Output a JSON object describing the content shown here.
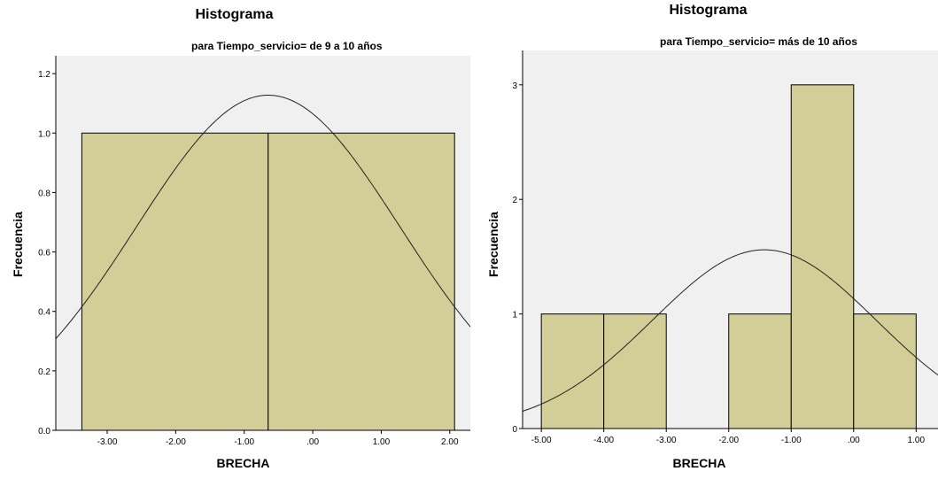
{
  "chart_data": [
    {
      "type": "bar",
      "title": "Histograma",
      "subtitle": "para Tiempo_servicio= de 9 a 10 años",
      "xlabel": "BRECHA",
      "ylabel": "Frecuencia",
      "xlim": [
        -3.75,
        2.3
      ],
      "ylim": [
        0,
        1.26
      ],
      "xticks": [
        -3.0,
        -2.0,
        -1.0,
        0.0,
        1.0,
        2.0
      ],
      "xtick_labels": [
        "-3.00",
        "-2.00",
        "-1.00",
        ".00",
        "1.00",
        "2.00"
      ],
      "yticks": [
        0.0,
        0.2,
        0.4,
        0.6,
        0.8,
        1.0,
        1.2
      ],
      "ytick_labels": [
        "0.0",
        "0.2",
        "0.4",
        "0.6",
        "0.8",
        "1.0",
        "1.2"
      ],
      "bins": [
        {
          "start": -3.37,
          "end": -0.65,
          "count": 1
        },
        {
          "start": -0.65,
          "end": 2.07,
          "count": 1
        }
      ],
      "normal_curve": {
        "mean": -0.65,
        "sd": 1.925,
        "n": 2,
        "bin_width": 2.72
      },
      "grid": false,
      "bar_color": "#d3ce98",
      "plot_bg": "#f0f0f0"
    },
    {
      "type": "bar",
      "title": "Histograma",
      "subtitle": "para Tiempo_servicio= más de 10 años",
      "xlabel": "BRECHA",
      "ylabel": "Frecuencia",
      "xlim": [
        -5.3,
        1.35
      ],
      "ylim": [
        0,
        3.3
      ],
      "xticks": [
        -5,
        -4,
        -3,
        -2,
        -1,
        0,
        1
      ],
      "xtick_labels": [
        "-5.00",
        "-4.00",
        "-3.00",
        "-2.00",
        "-1.00",
        ".00",
        "1.00"
      ],
      "yticks": [
        0,
        1,
        2,
        3
      ],
      "ytick_labels": [
        "0",
        "1",
        "2",
        "3"
      ],
      "bins": [
        {
          "start": -5,
          "end": -4,
          "count": 1
        },
        {
          "start": -4,
          "end": -3,
          "count": 1
        },
        {
          "start": -2,
          "end": -1,
          "count": 1
        },
        {
          "start": -1,
          "end": 0,
          "count": 3
        },
        {
          "start": 0,
          "end": 1,
          "count": 1
        }
      ],
      "normal_curve": {
        "mean": -1.43,
        "sd": 1.79,
        "n": 7,
        "bin_width": 1.0
      },
      "grid": false,
      "bar_color": "#d3ce98",
      "plot_bg": "#f0f0f0"
    }
  ]
}
